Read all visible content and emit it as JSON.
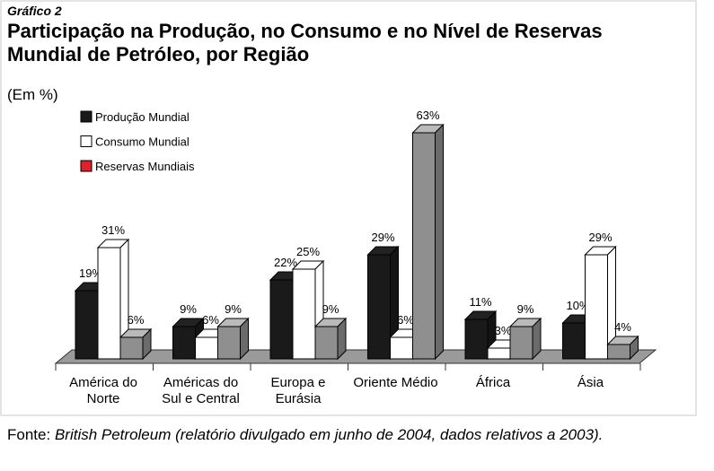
{
  "chart_data": {
    "type": "bar3d",
    "label": "Gráfico 2",
    "title": "Participação na Produção, no Consumo e no Nível de Reservas Mundial de Petróleo, por Região",
    "subtitle": "(Em %)",
    "categories": [
      "América do Norte",
      "Américas do Sul e Central",
      "Europa e Eurásia",
      "Oriente Médio",
      "África",
      "Ásia"
    ],
    "series": [
      {
        "name": "Produção Mundial",
        "color": "#1a1a1a",
        "values": [
          19,
          9,
          22,
          29,
          11,
          10
        ],
        "value_labels": [
          "19%",
          "9%",
          "22%",
          "29%",
          "11%",
          "10%"
        ]
      },
      {
        "name": "Consumo Mundial",
        "color": "#ffffff",
        "values": [
          31,
          6,
          25,
          6,
          3,
          29
        ],
        "value_labels": [
          "31%",
          "6%",
          "25%",
          "6%",
          "3%",
          "29%"
        ]
      },
      {
        "name": "Reservas Mundiais",
        "color": "#e0202a",
        "bar_color": "#8f8f8f",
        "values": [
          6,
          9,
          9,
          63,
          9,
          4
        ],
        "value_labels": [
          "6%",
          "9%",
          "9%",
          "63%",
          "9%",
          "4%"
        ]
      }
    ],
    "source": {
      "label": "Fonte:",
      "text": "British Petroleum (relatório divulgado em junho de 2004, dados relativos a 2003)."
    }
  }
}
